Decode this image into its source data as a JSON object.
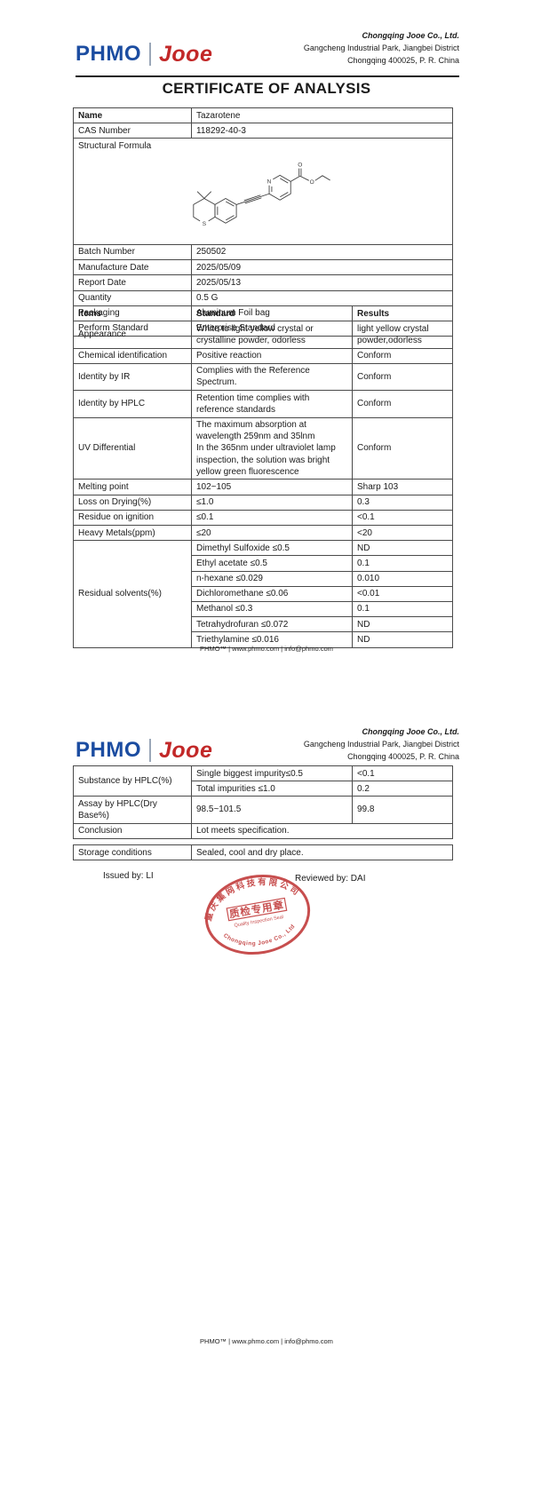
{
  "page": {
    "title": "CERTIFICATE OF ANALYSIS",
    "footer": "PHMO™ | www.phmo.com | info@phmo.com"
  },
  "header": {
    "logo_primary": "PHMO",
    "logo_secondary": "Jooe",
    "company_name": "Chongqing Jooe Co., Ltd.",
    "address_line1": "Gangcheng Industrial Park, Jiangbei District",
    "address_line2": "Chongqing 400025, P. R. China"
  },
  "colors": {
    "logo_blue": "#1c4da1",
    "logo_red": "#c22828",
    "stamp_red": "#c23b3b",
    "border_gray": "#4a4a4a"
  },
  "product_table": {
    "rows": [
      [
        {
          "t": "Name",
          "b": true
        },
        {
          "t": "Tazarotene"
        }
      ],
      [
        {
          "t": "CAS Number"
        },
        {
          "t": "118292-40-3"
        }
      ],
      [
        {
          "t": "Structural Formula",
          "colspan": 2,
          "cls": "formula-cell",
          "svg": "structure-formula-svg"
        }
      ],
      [
        {
          "t": "Batch Number"
        },
        {
          "t": "250502"
        }
      ],
      [
        {
          "t": "Manufacture Date"
        },
        {
          "t": "2025/05/09"
        }
      ],
      [
        {
          "t": "Report Date"
        },
        {
          "t": "2025/05/13"
        }
      ],
      [
        {
          "t": "Quantity"
        },
        {
          "t": "0.5 G"
        }
      ],
      [
        {
          "t": "Packaging"
        },
        {
          "t": "Aluminum Foil bag"
        }
      ],
      [
        {
          "t": "Perform Standard"
        },
        {
          "t": "Enterprise Standard"
        }
      ]
    ]
  },
  "spec_table": {
    "rows": [
      [
        {
          "t": "Items",
          "h": true
        },
        {
          "t": "Standard",
          "h": true
        },
        {
          "t": "Results",
          "h": true
        }
      ],
      [
        {
          "t": "Appearance"
        },
        {
          "t": "White to light yellow crystal or crystalline powder, odorless"
        },
        {
          "t": "light yellow crystal powder,odorless"
        }
      ],
      [
        {
          "t": "Chemical identification"
        },
        {
          "t": "Positive reaction"
        },
        {
          "t": "Conform"
        }
      ],
      [
        {
          "t": "Identity by IR"
        },
        {
          "t": "Complies with the Reference Spectrum."
        },
        {
          "t": "Conform"
        }
      ],
      [
        {
          "t": "Identity by HPLC"
        },
        {
          "t": "Retention time complies with reference standards"
        },
        {
          "t": "Conform"
        }
      ],
      [
        {
          "t": "UV Differential"
        },
        {
          "t": "The maximum absorption at wavelength 259nm and 35lnm\nIn the 365nm under ultraviolet lamp inspection, the solution was bright yellow green fluorescence"
        },
        {
          "t": "Conform"
        }
      ],
      [
        {
          "t": "Melting point"
        },
        {
          "t": "102~105"
        },
        {
          "t": "Sharp 103"
        }
      ],
      [
        {
          "t": "Loss on Drying(%)"
        },
        {
          "t": "≤1.0"
        },
        {
          "t": "0.3"
        }
      ],
      [
        {
          "t": "Residue on ignition"
        },
        {
          "t": "≤0.1"
        },
        {
          "t": "<0.1"
        }
      ],
      [
        {
          "t": "Heavy Metals(ppm)"
        },
        {
          "t": "≤20"
        },
        {
          "t": "<20"
        }
      ],
      [
        {
          "t": "Residual solvents(%)",
          "rowspan": 7
        },
        {
          "t": "Dimethyl Sulfoxide  ≤0.5"
        },
        {
          "t": "ND"
        }
      ],
      [
        {
          "t": "Ethyl acetate  ≤0.5"
        },
        {
          "t": "0.1"
        }
      ],
      [
        {
          "t": "n-hexane  ≤0.029"
        },
        {
          "t": "0.010"
        }
      ],
      [
        {
          "t": "Dichloromethane  ≤0.06"
        },
        {
          "t": "<0.01"
        }
      ],
      [
        {
          "t": "Methanol  ≤0.3"
        },
        {
          "t": "0.1"
        }
      ],
      [
        {
          "t": "Tetrahydrofuran  ≤0.072"
        },
        {
          "t": "ND"
        }
      ],
      [
        {
          "t": "Triethylamine  ≤0.016"
        },
        {
          "t": "ND"
        }
      ]
    ]
  },
  "hplc_table": {
    "rows": [
      [
        {
          "t": "Substance by HPLC(%)",
          "rowspan": 2
        },
        {
          "t": "Single biggest impurity≤0.5"
        },
        {
          "t": "<0.1"
        }
      ],
      [
        {
          "t": "Total impurities  ≤1.0"
        },
        {
          "t": "0.2"
        }
      ],
      [
        {
          "t": "Assay by HPLC(Dry Base%)"
        },
        {
          "t": "98.5~101.5"
        },
        {
          "t": "99.8"
        }
      ],
      [
        {
          "t": "Conclusion"
        },
        {
          "t": "Lot meets specification.",
          "colspan": 2
        }
      ]
    ]
  },
  "storage_table": {
    "rows": [
      [
        {
          "t": "Storage conditions"
        },
        {
          "t": "Sealed, cool and dry place."
        }
      ]
    ]
  },
  "signatures": {
    "issued_by": "Issued by: LI",
    "reviewed_by": "Reviewed by: DAI"
  },
  "stamp": {
    "arc_top": "重庆集网科技有限公司",
    "center_cn": "质检专用章",
    "center_en": "Quality Inspection Seal",
    "arc_bottom": "Chongqing Jooe Co., Ltd"
  }
}
